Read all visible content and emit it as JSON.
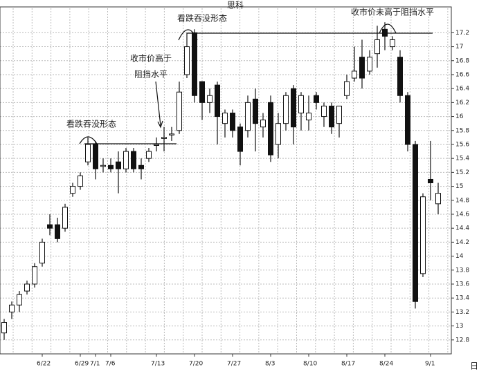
{
  "chart_data": {
    "type": "candlestick",
    "title": "思科",
    "x_unit": "日",
    "annotations": [
      {
        "lines": [
          "看跌吞没形态"
        ]
      },
      {
        "lines": [
          "收市价高于",
          "阻挡水平"
        ]
      },
      {
        "lines": [
          "看跌吞没形态"
        ]
      },
      {
        "lines": [
          "收市价未高于阻挡水平"
        ]
      }
    ],
    "categories": [
      null,
      null,
      null,
      null,
      null,
      "6/22",
      null,
      null,
      null,
      null,
      "6/29",
      null,
      "7/1",
      null,
      "7/6",
      null,
      null,
      null,
      null,
      null,
      "7/13",
      null,
      null,
      null,
      null,
      "7/20",
      null,
      null,
      null,
      null,
      "7/27",
      null,
      null,
      null,
      null,
      "8/3",
      null,
      null,
      null,
      null,
      "8/10",
      null,
      null,
      null,
      null,
      "8/17",
      null,
      null,
      null,
      null,
      "8/24",
      null,
      null,
      null,
      null,
      null,
      "9/1",
      null
    ],
    "open": [
      12.9,
      13.2,
      13.3,
      13.5,
      13.6,
      13.9,
      14.45,
      14.45,
      14.4,
      14.9,
      15.0,
      15.35,
      15.6,
      15.3,
      15.3,
      15.35,
      15.25,
      15.5,
      15.3,
      15.4,
      15.6,
      15.7,
      15.75,
      15.8,
      16.6,
      17.2,
      16.5,
      16.2,
      16.45,
      15.9,
      16.05,
      15.85,
      15.8,
      16.25,
      15.85,
      16.2,
      15.6,
      15.9,
      16.4,
      16.05,
      15.95,
      16.3,
      16.0,
      16.15,
      15.9,
      16.3,
      16.55,
      16.85,
      16.65,
      16.9,
      17.25,
      17.0,
      16.85,
      16.3,
      15.6,
      13.75,
      15.1,
      14.75
    ],
    "high": [
      13.1,
      13.35,
      13.5,
      13.65,
      13.9,
      14.25,
      14.6,
      14.55,
      14.75,
      15.05,
      15.2,
      15.7,
      15.65,
      15.4,
      15.4,
      15.5,
      15.55,
      15.55,
      15.4,
      15.55,
      15.7,
      15.85,
      15.85,
      16.5,
      17.2,
      17.25,
      16.5,
      16.4,
      16.5,
      16.1,
      16.1,
      15.9,
      16.3,
      16.4,
      16.05,
      16.3,
      16.05,
      16.35,
      16.45,
      16.35,
      16.3,
      16.35,
      16.2,
      16.2,
      16.15,
      16.6,
      17.0,
      17.1,
      16.95,
      17.3,
      17.35,
      17.15,
      16.95,
      16.35,
      15.65,
      14.9,
      15.65,
      15.05
    ],
    "low": [
      12.8,
      13.1,
      13.2,
      13.45,
      13.55,
      13.85,
      14.3,
      14.2,
      14.35,
      14.85,
      14.95,
      15.3,
      15.1,
      15.2,
      15.2,
      14.9,
      15.2,
      15.2,
      15.1,
      15.35,
      15.5,
      15.5,
      15.65,
      15.75,
      16.55,
      16.2,
      15.95,
      16.05,
      15.6,
      15.7,
      15.7,
      15.3,
      15.7,
      15.5,
      15.7,
      15.35,
      15.4,
      15.8,
      15.6,
      15.8,
      15.8,
      16.1,
      15.85,
      15.75,
      15.7,
      16.25,
      16.5,
      16.4,
      16.6,
      16.7,
      16.95,
      16.95,
      16.2,
      15.5,
      13.25,
      13.7,
      14.8,
      14.6
    ],
    "close": [
      13.05,
      13.3,
      13.45,
      13.6,
      13.85,
      14.2,
      14.4,
      14.25,
      14.7,
      15.0,
      15.15,
      15.6,
      15.25,
      15.3,
      15.25,
      15.25,
      15.5,
      15.25,
      15.25,
      15.5,
      15.6,
      15.7,
      15.75,
      16.35,
      17.0,
      16.3,
      16.2,
      16.3,
      16.0,
      16.05,
      15.8,
      15.5,
      16.2,
      15.9,
      15.95,
      15.45,
      15.9,
      16.3,
      15.85,
      16.3,
      16.05,
      16.2,
      16.15,
      15.85,
      16.15,
      16.5,
      16.65,
      16.55,
      16.85,
      17.1,
      17.15,
      17.1,
      16.3,
      15.6,
      13.35,
      14.85,
      15.05,
      14.9
    ],
    "up_color": "#ffffff",
    "down_color": "#111111",
    "ylim": [
      12.6,
      17.55
    ],
    "yticks": [
      12.8,
      13,
      13.2,
      13.4,
      13.6,
      13.8,
      14,
      14.2,
      14.4,
      14.6,
      14.8,
      15,
      15.2,
      15.4,
      15.6,
      15.8,
      16,
      16.2,
      16.4,
      16.6,
      16.8,
      17,
      17.2
    ],
    "grid": true
  }
}
